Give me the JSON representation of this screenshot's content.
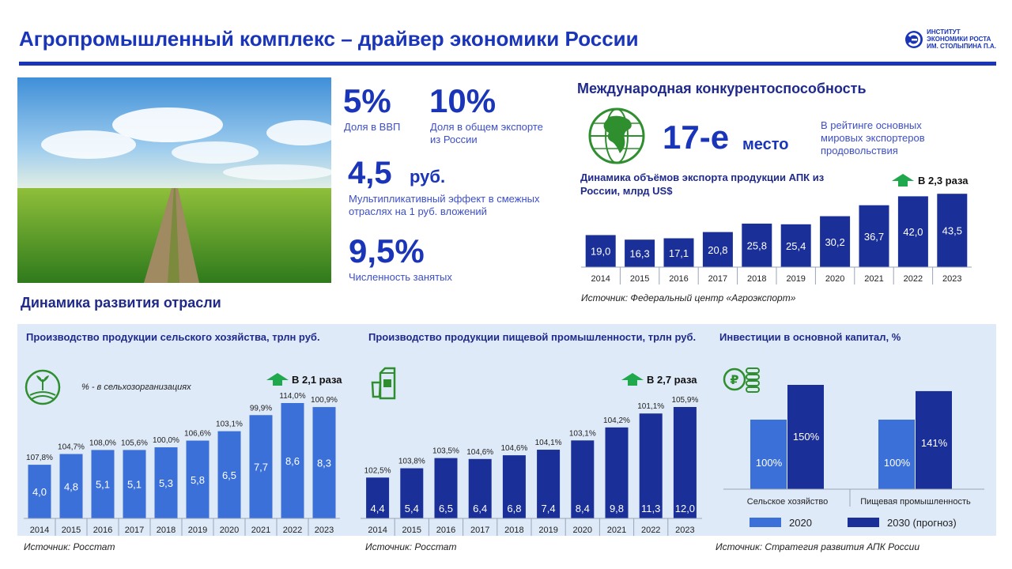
{
  "header": {
    "title": "Агропромышленный комплекс – драйвер экономики России",
    "logo_lines": [
      "ИНСТИТУТ",
      "ЭКОНОМИКИ РОСТА",
      "ИМ. СТОЛЫПИНА П.А."
    ]
  },
  "stats": {
    "gdp_value": "5%",
    "gdp_label": "Доля в ВВП",
    "export_value": "10%",
    "export_label": "Доля в общем экспорте из России",
    "mult_value": "4,5",
    "mult_unit": "руб.",
    "mult_label": "Мультипликативный эффект в смежных отраслях на 1 руб. вложений",
    "emp_value": "9,5%",
    "emp_label": "Численность занятых"
  },
  "intl": {
    "heading": "Международная конкурентоспособность",
    "rank": "17-е",
    "rank_word": "место",
    "rank_desc": "В рейтинге основных мировых экспортеров продовольствия"
  },
  "development_heading": "Динамика развития отрасли",
  "colors": {
    "dark": "#1a2f97",
    "mid": "#3a70d8",
    "green": "#1fa84c",
    "globe": "#2f8f2f"
  },
  "chart_data": [
    {
      "id": "export",
      "type": "bar",
      "title": "Динамика объёмов экспорта продукции АПК из России, млрд US$",
      "badge": "В 2,3 раза",
      "categories": [
        "2014",
        "2015",
        "2016",
        "2017",
        "2018",
        "2019",
        "2020",
        "2021",
        "2022",
        "2023"
      ],
      "values": [
        19.0,
        16.3,
        17.1,
        20.8,
        25.8,
        25.4,
        30.2,
        36.7,
        42.0,
        43.5
      ],
      "value_labels": [
        "19,0",
        "16,3",
        "17,1",
        "20,8",
        "25,8",
        "25,4",
        "30,2",
        "36,7",
        "42,0",
        "43,5"
      ],
      "source": "Источник: Федеральный центр «Агроэкспорт»"
    },
    {
      "id": "agri",
      "type": "bar",
      "title": "Производство продукции сельского хозяйства, трлн руб.",
      "note": "% - в сельхозорганизациях",
      "badge": "В 2,1 раза",
      "categories": [
        "2014",
        "2015",
        "2016",
        "2017",
        "2018",
        "2019",
        "2020",
        "2021",
        "2022",
        "2023"
      ],
      "values": [
        4.0,
        4.8,
        5.1,
        5.1,
        5.3,
        5.8,
        6.5,
        7.7,
        8.6,
        8.3
      ],
      "value_labels": [
        "4,0",
        "4,8",
        "5,1",
        "5,1",
        "5,3",
        "5,8",
        "6,5",
        "7,7",
        "8,6",
        "8,3"
      ],
      "pct_labels": [
        "107,8%",
        "104,7%",
        "108,0%",
        "105,6%",
        "100,0%",
        "106,6%",
        "103,1%",
        "99,9%",
        "114,0%",
        "100,9%"
      ],
      "source": "Источник: Росстат"
    },
    {
      "id": "food",
      "type": "bar",
      "title": "Производство продукции пищевой промышленности, трлн руб.",
      "badge": "В 2,7 раза",
      "categories": [
        "2014",
        "2015",
        "2016",
        "2017",
        "2018",
        "2019",
        "2020",
        "2021",
        "2022",
        "2023"
      ],
      "values": [
        4.4,
        5.4,
        6.5,
        6.4,
        6.8,
        7.4,
        8.4,
        9.8,
        11.3,
        12.0
      ],
      "value_labels": [
        "4,4",
        "5,4",
        "6,5",
        "6,4",
        "6,8",
        "7,4",
        "8,4",
        "9,8",
        "11,3",
        "12,0"
      ],
      "pct_labels": [
        "102,5%",
        "103,8%",
        "103,5%",
        "104,6%",
        "104,6%",
        "104,1%",
        "103,1%",
        "104,2%",
        "101,1%",
        "105,9%"
      ],
      "source": "Источник: Росстат"
    },
    {
      "id": "invest",
      "type": "bar",
      "title": "Инвестиции в основной капитал, %",
      "categories": [
        "Сельское хозяйство",
        "Пищевая промышленность"
      ],
      "series": [
        {
          "name": "2020",
          "values": [
            100,
            100
          ],
          "value_labels": [
            "100%",
            "100%"
          ]
        },
        {
          "name": "2030 (прогноз)",
          "values": [
            150,
            141
          ],
          "value_labels": [
            "150%",
            "141%"
          ]
        }
      ],
      "source": "Источник: Стратегия развития АПК России"
    }
  ]
}
